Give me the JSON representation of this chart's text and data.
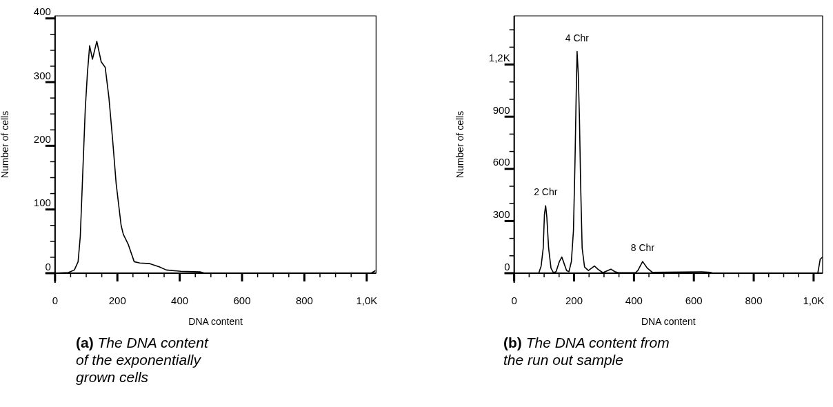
{
  "chart_data": [
    {
      "type": "line",
      "title": "(a)",
      "subtitle": "The DNA content of the exponentially grown cells",
      "xlabel": "DNA content",
      "ylabel": "Number of cells",
      "color": "#000000",
      "marker": "none",
      "line_style": "solid",
      "grid": false,
      "x": [
        0,
        43,
        62,
        74,
        81,
        89,
        97,
        104,
        111,
        120,
        134,
        148,
        161,
        173,
        185,
        196,
        212,
        219,
        235,
        254,
        272,
        304,
        334,
        357,
        403,
        465,
        480,
        1014,
        1028
      ],
      "values": [
        0,
        1,
        5,
        18,
        58,
        158,
        258,
        315,
        357,
        336,
        364,
        332,
        323,
        275,
        208,
        141,
        75,
        61,
        45,
        18,
        16,
        15,
        10,
        5,
        3,
        2,
        0,
        0,
        4
      ],
      "xlim": [
        0,
        1030
      ],
      "ylim": [
        0,
        404
      ],
      "xticks": [
        0,
        {
          "value": 50,
          "label": null
        },
        {
          "value": 100,
          "label": null
        },
        {
          "value": 150,
          "label": null
        },
        200,
        {
          "value": 250,
          "label": null
        },
        {
          "value": 300,
          "label": null
        },
        {
          "value": 350,
          "label": null
        },
        400,
        {
          "value": 450,
          "label": null
        },
        {
          "value": 500,
          "label": null
        },
        {
          "value": 550,
          "label": null
        },
        600,
        {
          "value": 650,
          "label": null
        },
        {
          "value": 700,
          "label": null
        },
        {
          "value": 750,
          "label": null
        },
        800,
        {
          "value": 850,
          "label": null
        },
        {
          "value": 900,
          "label": null
        },
        {
          "value": 950,
          "label": null
        },
        {
          "value": 1000,
          "label": "1,0K"
        }
      ],
      "yticks": [
        0,
        {
          "value": 25,
          "label": null
        },
        {
          "value": 50,
          "label": null
        },
        {
          "value": 75,
          "label": null
        },
        100,
        {
          "value": 125,
          "label": null
        },
        {
          "value": 150,
          "label": null
        },
        {
          "value": 175,
          "label": null
        },
        200,
        {
          "value": 225,
          "label": null
        },
        {
          "value": 250,
          "label": null
        },
        {
          "value": 275,
          "label": null
        },
        300,
        {
          "value": 325,
          "label": null
        },
        {
          "value": 350,
          "label": null
        },
        {
          "value": 375,
          "label": null
        },
        400
      ]
    },
    {
      "type": "line",
      "title": "(b)",
      "subtitle": "The DNA content from the run out sample",
      "xlabel": "DNA content",
      "ylabel": "Number of cells",
      "color": "#000000",
      "marker": "none",
      "line_style": "solid",
      "grid": false,
      "x": [
        0,
        82,
        90,
        97,
        101,
        105,
        109,
        115,
        123,
        131,
        140,
        151,
        159,
        167,
        175,
        183,
        191,
        198,
        203,
        207,
        210,
        214,
        218,
        222,
        227,
        235,
        248,
        268,
        280,
        296,
        323,
        336,
        348,
        405,
        413,
        429,
        445,
        461,
        627,
        655,
        663,
        1014,
        1022,
        1030
      ],
      "values": [
        0,
        0,
        41,
        144,
        337,
        388,
        324,
        144,
        28,
        3,
        9,
        67,
        93,
        54,
        15,
        9,
        67,
        247,
        632,
        1018,
        1275,
        1147,
        889,
        504,
        144,
        35,
        15,
        41,
        22,
        3,
        23,
        9,
        3,
        3,
        15,
        67,
        28,
        5,
        8,
        5,
        0,
        0,
        80,
        93
      ],
      "xlim": [
        0,
        1030
      ],
      "ylim": [
        0,
        1480
      ],
      "xticks": [
        0,
        {
          "value": 50,
          "label": null
        },
        {
          "value": 100,
          "label": null
        },
        {
          "value": 150,
          "label": null
        },
        200,
        {
          "value": 250,
          "label": null
        },
        {
          "value": 300,
          "label": null
        },
        {
          "value": 350,
          "label": null
        },
        400,
        {
          "value": 450,
          "label": null
        },
        {
          "value": 500,
          "label": null
        },
        {
          "value": 550,
          "label": null
        },
        600,
        {
          "value": 650,
          "label": null
        },
        {
          "value": 700,
          "label": null
        },
        {
          "value": 750,
          "label": null
        },
        800,
        {
          "value": 850,
          "label": null
        },
        {
          "value": 900,
          "label": null
        },
        {
          "value": 950,
          "label": null
        },
        {
          "value": 1000,
          "label": "1,0K"
        }
      ],
      "yticks": [
        0,
        {
          "value": 100,
          "label": null
        },
        {
          "value": 200,
          "label": null
        },
        300,
        {
          "value": 400,
          "label": null
        },
        {
          "value": 500,
          "label": null
        },
        600,
        {
          "value": 700,
          "label": null
        },
        {
          "value": 800,
          "label": null
        },
        900,
        {
          "value": 1000,
          "label": null
        },
        {
          "value": 1100,
          "label": null
        },
        {
          "value": 1200,
          "label": "1,2K"
        },
        {
          "value": 1300,
          "label": null
        },
        {
          "value": 1400,
          "label": null
        }
      ],
      "annotations": [
        {
          "text": "2 Chr",
          "x": 105,
          "y": 388
        },
        {
          "text": "4 Chr",
          "x": 210,
          "y": 1275
        },
        {
          "text": "8 Chr",
          "x": 429,
          "y": 67
        }
      ]
    }
  ]
}
